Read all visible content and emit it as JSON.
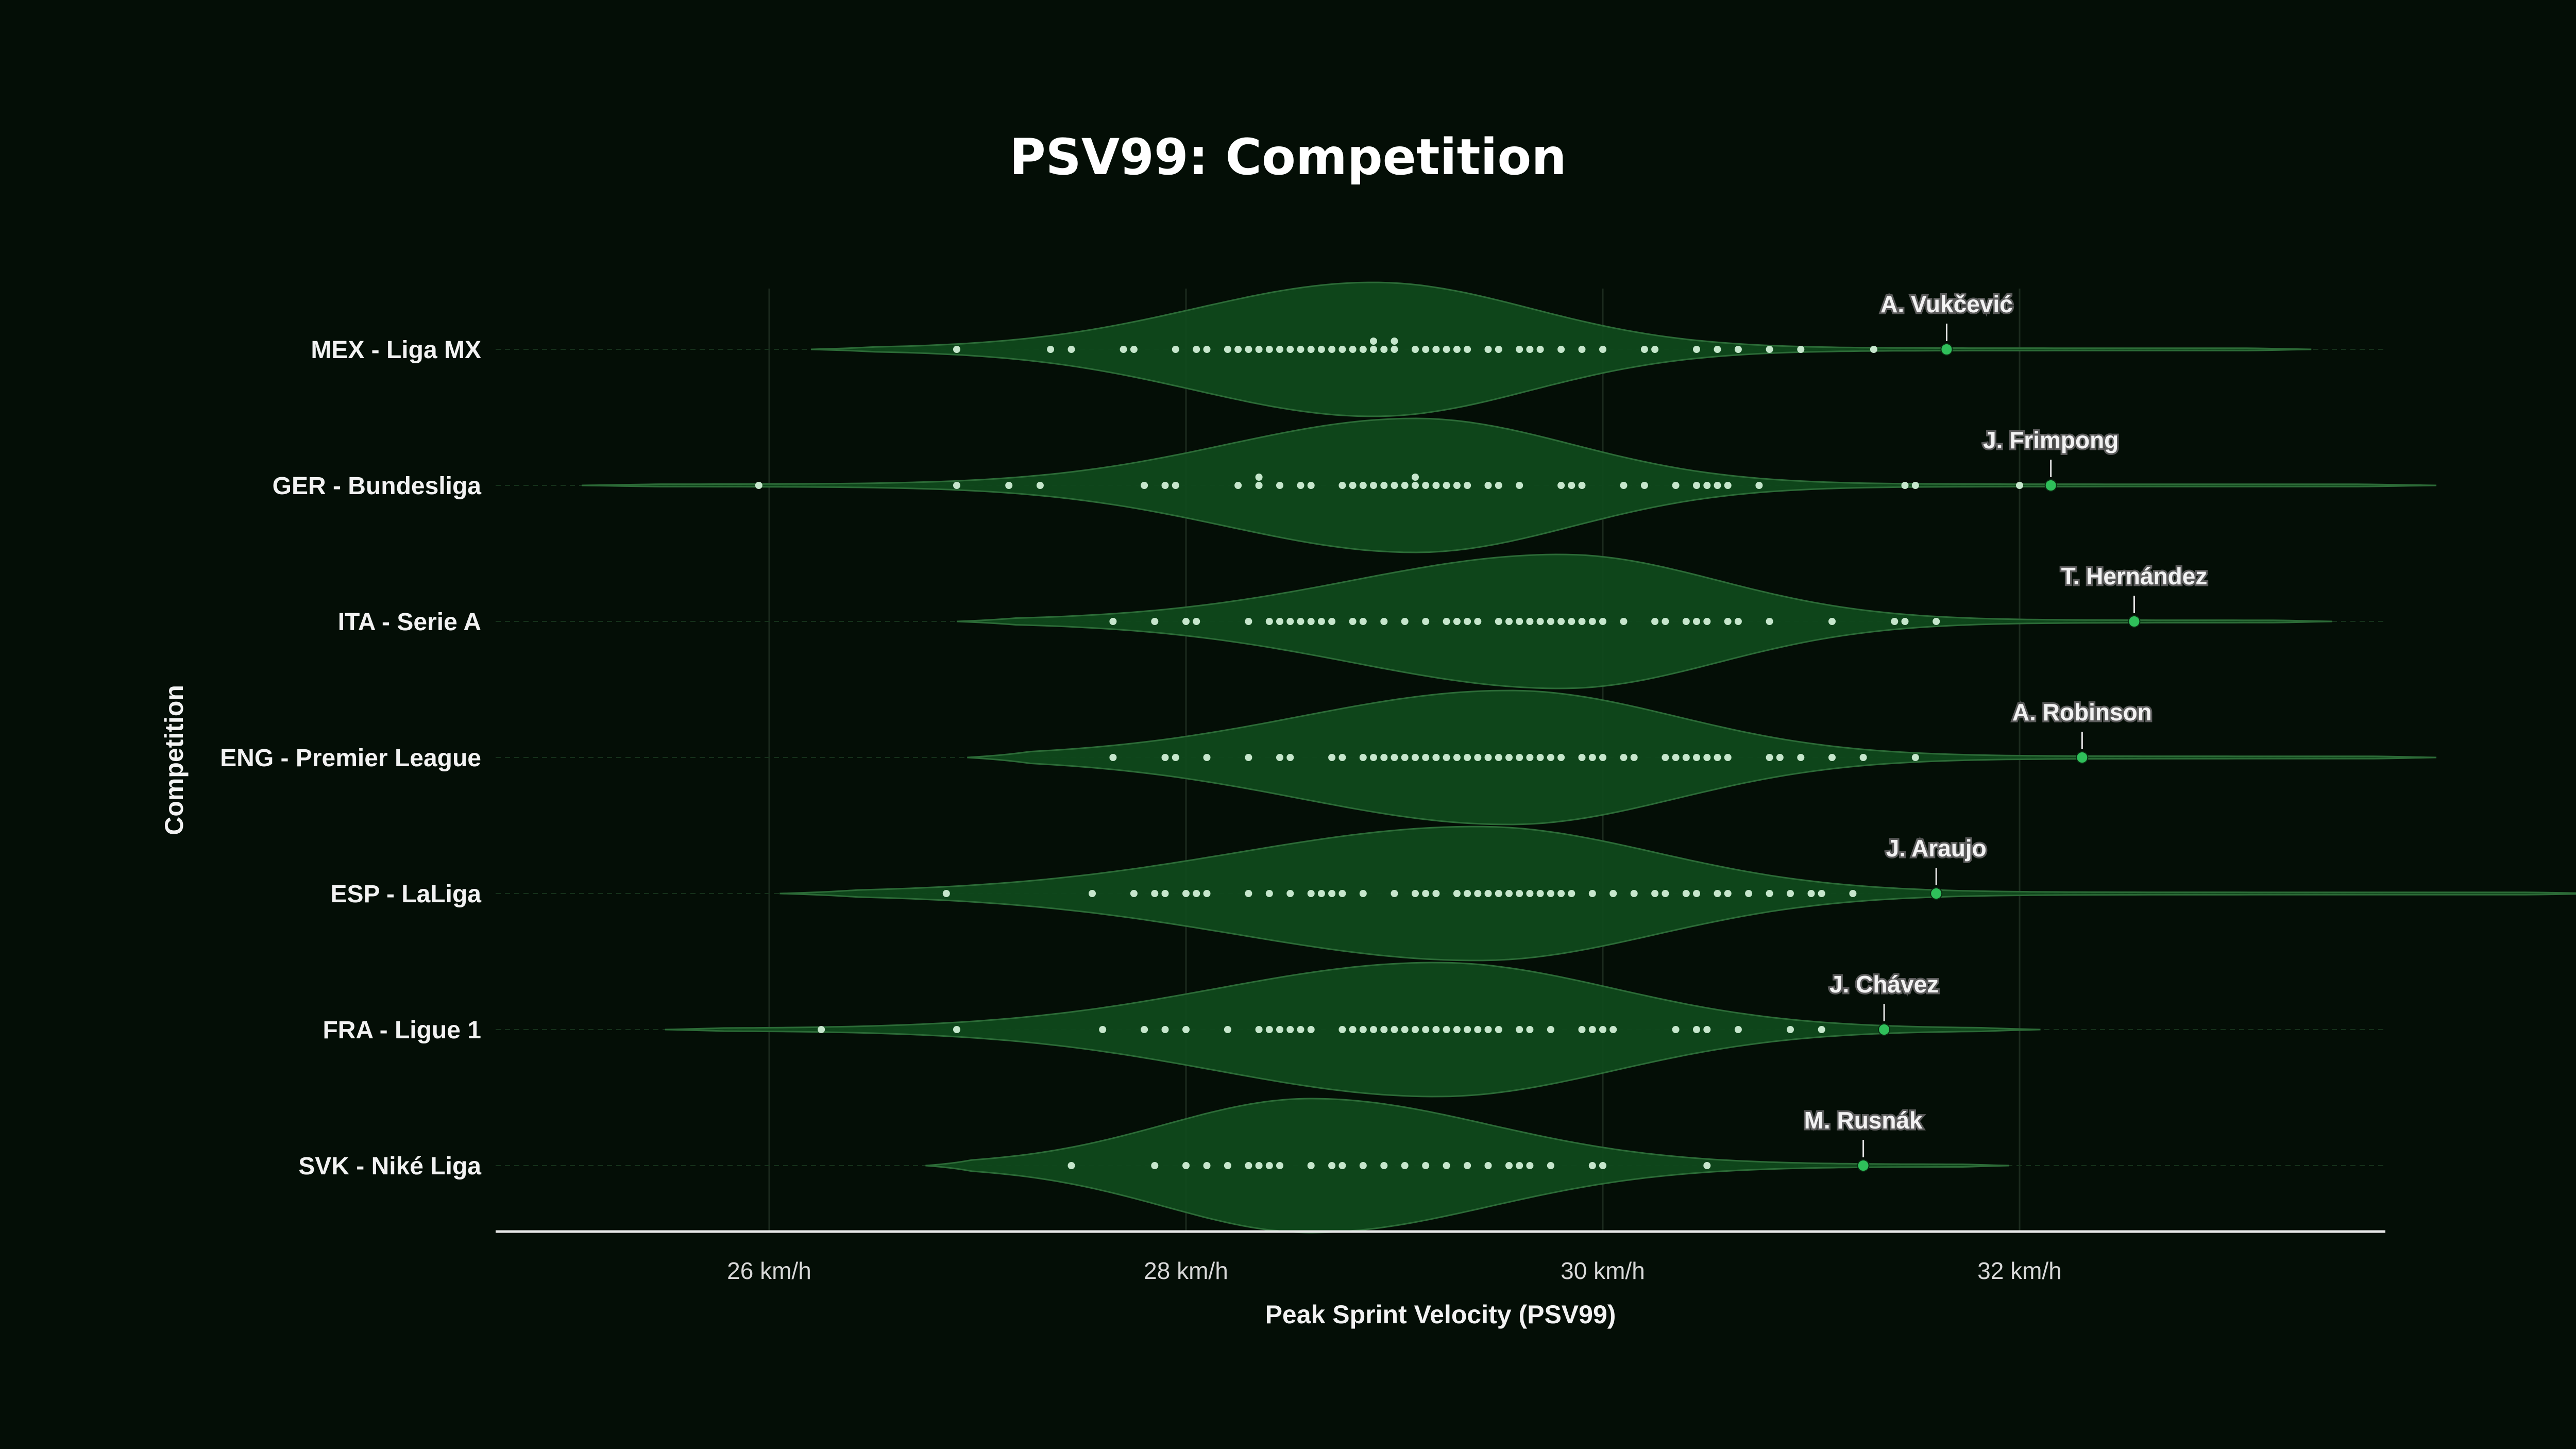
{
  "chart_data": {
    "type": "violin",
    "title": "PSV99: Competition",
    "xlabel": "Peak Sprint Velocity (PSV99)",
    "ylabel": "Competition",
    "xlim": [
      24.7,
      33.75
    ],
    "x_ticks": [
      26,
      28,
      30,
      32
    ],
    "x_tick_labels": [
      "26 km/h",
      "28 km/h",
      "30 km/h",
      "32 km/h"
    ],
    "grid": true,
    "colors": {
      "background": "#040e06",
      "violin_fill": "#0f4a1c",
      "violin_edge": "#2c6b37",
      "points": "#c6e6cc",
      "highlight": "#2fbf5a",
      "axis": "#e6e6e6"
    },
    "series": [
      {
        "name": "MEX - Liga MX",
        "peak": 28.9,
        "sd_left": 0.85,
        "sd_right": 0.75,
        "range": [
          26.2,
          33.4
        ],
        "highlight": {
          "player": "A. Vukčević",
          "value": 31.65
        },
        "values": [
          26.9,
          27.35,
          27.45,
          27.7,
          27.75,
          27.95,
          28.05,
          28.1,
          28.2,
          28.25,
          28.3,
          28.35,
          28.4,
          28.45,
          28.5,
          28.55,
          28.6,
          28.65,
          28.7,
          28.75,
          28.8,
          28.85,
          28.9,
          28.9,
          28.95,
          29.0,
          29.0,
          29.1,
          29.15,
          29.2,
          29.25,
          29.3,
          29.35,
          29.45,
          29.5,
          29.6,
          29.65,
          29.7,
          29.8,
          29.9,
          30.0,
          30.2,
          30.25,
          30.45,
          30.55,
          30.65,
          30.8,
          30.95,
          31.3
        ]
      },
      {
        "name": "GER - Bundesliga",
        "peak": 29.1,
        "sd_left": 0.9,
        "sd_right": 0.75,
        "range": [
          25.1,
          34.0
        ],
        "highlight": {
          "player": "J. Frimpong",
          "value": 32.15
        },
        "values": [
          25.95,
          26.9,
          27.15,
          27.3,
          27.8,
          27.9,
          27.95,
          28.25,
          28.35,
          28.35,
          28.45,
          28.55,
          28.6,
          28.75,
          28.8,
          28.85,
          28.9,
          28.95,
          29.0,
          29.05,
          29.1,
          29.1,
          29.15,
          29.2,
          29.25,
          29.3,
          29.35,
          29.45,
          29.5,
          29.6,
          29.8,
          29.85,
          29.9,
          30.1,
          30.2,
          30.35,
          30.45,
          30.5,
          30.55,
          30.6,
          30.75,
          31.45,
          31.5,
          32.0
        ]
      },
      {
        "name": "ITA - Serie A",
        "peak": 29.8,
        "sd_left": 1.0,
        "sd_right": 0.75,
        "range": [
          26.9,
          33.5
        ],
        "highlight": {
          "player": "T. Hernández",
          "value": 32.55
        },
        "values": [
          27.65,
          27.85,
          28.0,
          28.05,
          28.3,
          28.4,
          28.45,
          28.5,
          28.55,
          28.6,
          28.65,
          28.7,
          28.8,
          28.85,
          28.95,
          29.05,
          29.15,
          29.25,
          29.3,
          29.35,
          29.4,
          29.5,
          29.55,
          29.6,
          29.65,
          29.7,
          29.75,
          29.8,
          29.85,
          29.9,
          29.95,
          30.0,
          30.1,
          30.25,
          30.3,
          30.4,
          30.45,
          30.5,
          30.6,
          30.65,
          30.8,
          31.1,
          31.4,
          31.45,
          31.6,
          32.55
        ]
      },
      {
        "name": "ENG - Premier League",
        "peak": 29.55,
        "sd_left": 1.0,
        "sd_right": 0.8,
        "range": [
          26.95,
          34.0
        ],
        "highlight": {
          "player": "A. Robinson",
          "value": 32.3
        },
        "values": [
          27.65,
          27.9,
          27.95,
          28.1,
          28.3,
          28.45,
          28.5,
          28.7,
          28.75,
          28.85,
          28.9,
          28.95,
          29.0,
          29.05,
          29.1,
          29.15,
          29.2,
          29.25,
          29.3,
          29.35,
          29.4,
          29.45,
          29.5,
          29.55,
          29.6,
          29.65,
          29.7,
          29.75,
          29.8,
          29.9,
          29.95,
          30.0,
          30.1,
          30.15,
          30.3,
          30.35,
          30.4,
          30.45,
          30.5,
          30.55,
          30.6,
          30.8,
          30.85,
          30.95,
          31.1,
          31.25,
          31.5
        ]
      },
      {
        "name": "ESP - LaLiga",
        "peak": 29.4,
        "sd_left": 1.15,
        "sd_right": 0.85,
        "range": [
          26.05,
          34.8
        ],
        "highlight": {
          "player": "J. Araujo",
          "value": 31.6
        },
        "values": [
          26.85,
          27.55,
          27.75,
          27.85,
          27.9,
          28.0,
          28.05,
          28.1,
          28.3,
          28.4,
          28.5,
          28.6,
          28.65,
          28.7,
          28.75,
          28.85,
          29.0,
          29.1,
          29.15,
          29.2,
          29.3,
          29.35,
          29.4,
          29.45,
          29.5,
          29.55,
          29.6,
          29.65,
          29.7,
          29.75,
          29.8,
          29.85,
          29.95,
          30.05,
          30.15,
          30.25,
          30.3,
          30.4,
          30.45,
          30.55,
          30.6,
          30.7,
          30.8,
          30.9,
          31.0,
          31.05,
          31.2
        ]
      },
      {
        "name": "FRA - Ligue 1",
        "peak": 29.2,
        "sd_left": 1.05,
        "sd_right": 0.85,
        "range": [
          25.5,
          32.1
        ],
        "highlight": {
          "player": "J. Chávez",
          "value": 31.35
        },
        "values": [
          26.25,
          26.9,
          27.6,
          27.8,
          27.9,
          28.0,
          28.2,
          28.35,
          28.4,
          28.45,
          28.5,
          28.55,
          28.6,
          28.75,
          28.8,
          28.85,
          28.9,
          28.95,
          29.0,
          29.05,
          29.1,
          29.15,
          29.2,
          29.25,
          29.3,
          29.35,
          29.4,
          29.45,
          29.5,
          29.6,
          29.65,
          29.75,
          29.9,
          29.95,
          30.0,
          30.05,
          30.35,
          30.45,
          30.5,
          30.65,
          30.9,
          31.05,
          31.35
        ]
      },
      {
        "name": "SVK - Niké Liga",
        "peak": 28.6,
        "sd_left": 0.7,
        "sd_right": 0.85,
        "range": [
          26.75,
          31.95
        ],
        "highlight": {
          "player": "M. Rusnák",
          "value": 31.25
        },
        "values": [
          27.45,
          27.85,
          28.0,
          28.1,
          28.2,
          28.3,
          28.35,
          28.4,
          28.45,
          28.6,
          28.7,
          28.75,
          28.85,
          28.95,
          29.05,
          29.15,
          29.25,
          29.35,
          29.45,
          29.55,
          29.6,
          29.65,
          29.75,
          29.95,
          30.0,
          30.5
        ]
      }
    ]
  }
}
